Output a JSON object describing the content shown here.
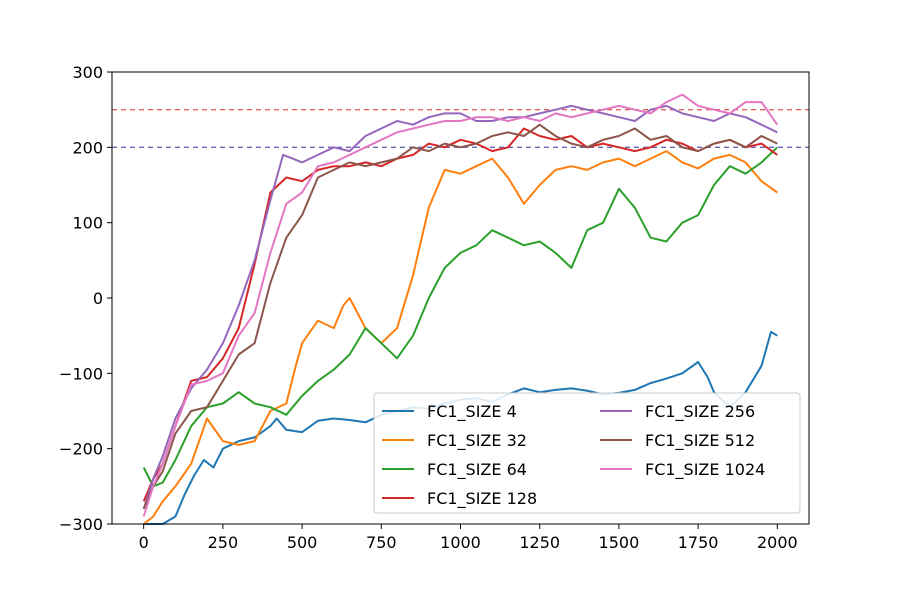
{
  "chart_data": {
    "type": "line",
    "title": "",
    "xlabel": "",
    "ylabel": "",
    "xlim": [
      -100,
      2100
    ],
    "ylim": [
      -300,
      300
    ],
    "xticks": [
      0,
      250,
      500,
      750,
      1000,
      1250,
      1500,
      1750,
      2000
    ],
    "yticks": [
      -300,
      -200,
      -100,
      0,
      100,
      200,
      300
    ],
    "xtick_labels": [
      "0",
      "250",
      "500",
      "750",
      "1000",
      "1250",
      "1500",
      "1750",
      "2000"
    ],
    "ytick_labels": [
      "−300",
      "−200",
      "−100",
      "0",
      "100",
      "200",
      "300"
    ],
    "grid": false,
    "legend_position": "lower-right",
    "legend_columns": 2,
    "reference_lines": [
      {
        "y": 250,
        "color": "#e36262",
        "style": "dashed"
      },
      {
        "y": 200,
        "color": "#6b67b4",
        "style": "dashed"
      }
    ],
    "series": [
      {
        "name": "FC1_SIZE 4",
        "color": "#1f77b4",
        "x": [
          0,
          30,
          60,
          100,
          130,
          160,
          190,
          220,
          250,
          300,
          350,
          400,
          420,
          450,
          480,
          500,
          550,
          600,
          650,
          700,
          750,
          800,
          850,
          900,
          950,
          1000,
          1050,
          1100,
          1150,
          1200,
          1250,
          1300,
          1350,
          1400,
          1450,
          1500,
          1550,
          1600,
          1650,
          1700,
          1750,
          1780,
          1800,
          1850,
          1900,
          1950,
          1980,
          2000
        ],
        "y": [
          -300,
          -300,
          -300,
          -290,
          -260,
          -235,
          -215,
          -225,
          -200,
          -190,
          -185,
          -170,
          -160,
          -175,
          -177,
          -178,
          -163,
          -160,
          -162,
          -165,
          -155,
          -150,
          -145,
          -147,
          -140,
          -135,
          -133,
          -138,
          -128,
          -120,
          -125,
          -122,
          -120,
          -123,
          -128,
          -126,
          -122,
          -113,
          -107,
          -100,
          -85,
          -105,
          -125,
          -145,
          -125,
          -90,
          -45,
          -50
        ]
      },
      {
        "name": "FC1_SIZE 32",
        "color": "#ff7f0e",
        "x": [
          0,
          30,
          60,
          100,
          150,
          200,
          250,
          300,
          350,
          400,
          450,
          480,
          500,
          550,
          600,
          630,
          650,
          700,
          750,
          800,
          850,
          900,
          950,
          1000,
          1050,
          1100,
          1150,
          1200,
          1250,
          1300,
          1350,
          1400,
          1450,
          1500,
          1550,
          1600,
          1650,
          1700,
          1750,
          1800,
          1850,
          1900,
          1950,
          2000
        ],
        "y": [
          -300,
          -290,
          -270,
          -250,
          -220,
          -160,
          -190,
          -195,
          -190,
          -150,
          -140,
          -90,
          -60,
          -30,
          -40,
          -10,
          0,
          -40,
          -60,
          -40,
          30,
          120,
          170,
          165,
          175,
          185,
          160,
          125,
          150,
          170,
          175,
          170,
          180,
          185,
          175,
          185,
          195,
          180,
          172,
          185,
          190,
          180,
          155,
          140
        ]
      },
      {
        "name": "FC1_SIZE 64",
        "color": "#2ca02c",
        "x": [
          0,
          30,
          60,
          100,
          150,
          200,
          250,
          300,
          350,
          400,
          450,
          500,
          550,
          600,
          650,
          700,
          750,
          800,
          850,
          900,
          950,
          1000,
          1050,
          1100,
          1150,
          1200,
          1250,
          1300,
          1350,
          1400,
          1450,
          1500,
          1550,
          1600,
          1650,
          1700,
          1750,
          1800,
          1850,
          1900,
          1950,
          2000
        ],
        "y": [
          -225,
          -250,
          -245,
          -215,
          -170,
          -145,
          -140,
          -125,
          -140,
          -145,
          -155,
          -130,
          -110,
          -95,
          -75,
          -40,
          -60,
          -80,
          -50,
          0,
          40,
          60,
          70,
          90,
          80,
          70,
          75,
          60,
          40,
          90,
          100,
          145,
          120,
          80,
          75,
          100,
          110,
          150,
          175,
          165,
          180,
          200
        ]
      },
      {
        "name": "FC1_SIZE 128",
        "color": "#d62728",
        "x": [
          0,
          30,
          60,
          100,
          150,
          200,
          250,
          300,
          350,
          400,
          450,
          500,
          550,
          600,
          650,
          700,
          750,
          800,
          850,
          900,
          950,
          1000,
          1050,
          1100,
          1150,
          1200,
          1250,
          1300,
          1350,
          1400,
          1450,
          1500,
          1550,
          1600,
          1650,
          1700,
          1750,
          1800,
          1850,
          1900,
          1950,
          2000
        ],
        "y": [
          -270,
          -240,
          -220,
          -170,
          -110,
          -105,
          -80,
          -40,
          45,
          140,
          160,
          155,
          170,
          175,
          175,
          180,
          175,
          185,
          190,
          205,
          200,
          210,
          205,
          195,
          200,
          225,
          215,
          210,
          215,
          200,
          205,
          200,
          195,
          200,
          210,
          205,
          195,
          205,
          210,
          200,
          205,
          190
        ]
      },
      {
        "name": "FC1_SIZE 256",
        "color": "#9467bd",
        "x": [
          0,
          30,
          60,
          100,
          150,
          200,
          250,
          300,
          350,
          400,
          440,
          470,
          500,
          550,
          600,
          650,
          700,
          750,
          800,
          850,
          900,
          950,
          1000,
          1050,
          1100,
          1150,
          1200,
          1250,
          1300,
          1350,
          1400,
          1450,
          1500,
          1550,
          1600,
          1650,
          1700,
          1750,
          1800,
          1850,
          1900,
          1950,
          2000
        ],
        "y": [
          -280,
          -240,
          -210,
          -160,
          -120,
          -95,
          -60,
          -10,
          50,
          130,
          190,
          185,
          180,
          190,
          200,
          195,
          215,
          225,
          235,
          230,
          240,
          245,
          245,
          235,
          235,
          240,
          240,
          245,
          250,
          255,
          250,
          245,
          240,
          235,
          250,
          255,
          245,
          240,
          235,
          245,
          240,
          230,
          220
        ]
      },
      {
        "name": "FC1_SIZE 512",
        "color": "#8c564b",
        "x": [
          0,
          30,
          60,
          100,
          150,
          200,
          250,
          300,
          350,
          400,
          450,
          500,
          550,
          600,
          650,
          700,
          750,
          800,
          850,
          900,
          950,
          1000,
          1050,
          1100,
          1150,
          1200,
          1250,
          1300,
          1350,
          1400,
          1450,
          1500,
          1550,
          1600,
          1650,
          1700,
          1750,
          1800,
          1850,
          1900,
          1950,
          2000
        ],
        "y": [
          -280,
          -250,
          -230,
          -180,
          -150,
          -145,
          -110,
          -75,
          -60,
          20,
          80,
          110,
          160,
          170,
          180,
          175,
          180,
          185,
          200,
          195,
          205,
          200,
          205,
          215,
          220,
          215,
          230,
          215,
          205,
          200,
          210,
          215,
          225,
          210,
          215,
          200,
          195,
          205,
          210,
          200,
          215,
          205
        ]
      },
      {
        "name": "FC1_SIZE 1024",
        "color": "#e377c2",
        "x": [
          0,
          30,
          60,
          100,
          150,
          200,
          250,
          300,
          350,
          400,
          450,
          500,
          550,
          600,
          650,
          700,
          750,
          800,
          850,
          900,
          950,
          1000,
          1050,
          1100,
          1150,
          1200,
          1250,
          1300,
          1350,
          1400,
          1450,
          1500,
          1550,
          1600,
          1650,
          1700,
          1750,
          1800,
          1850,
          1900,
          1950,
          2000
        ],
        "y": [
          -290,
          -250,
          -220,
          -170,
          -115,
          -110,
          -100,
          -50,
          -20,
          60,
          125,
          140,
          175,
          180,
          190,
          200,
          210,
          220,
          225,
          230,
          235,
          235,
          240,
          240,
          235,
          240,
          235,
          245,
          240,
          245,
          250,
          255,
          250,
          245,
          260,
          270,
          255,
          250,
          245,
          260,
          260,
          230
        ]
      }
    ]
  }
}
